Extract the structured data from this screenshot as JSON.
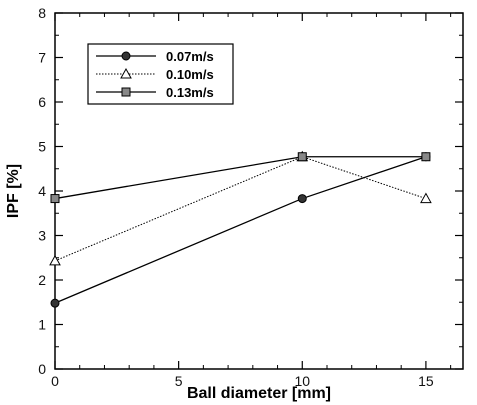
{
  "chart_data": {
    "type": "line",
    "xlabel": "Ball diameter [mm]",
    "ylabel": "IPF [%]",
    "xlim": [
      0,
      16.5
    ],
    "ylim": [
      0,
      8
    ],
    "xticks": [
      0,
      5,
      10,
      15
    ],
    "yticks": [
      0,
      1,
      2,
      3,
      4,
      5,
      6,
      7,
      8
    ],
    "grid": false,
    "legend_position": "top-left",
    "series": [
      {
        "name": "0.07m/s",
        "marker": "circle",
        "dash": "solid",
        "color": "#000000",
        "points": [
          [
            0,
            1.48
          ],
          [
            10,
            3.83
          ],
          [
            15,
            4.77
          ]
        ]
      },
      {
        "name": "0.10m/s",
        "marker": "triangle",
        "dash": "dotted",
        "color": "#000000",
        "points": [
          [
            0,
            2.43
          ],
          [
            10,
            4.77
          ],
          [
            15,
            3.83
          ]
        ]
      },
      {
        "name": "0.13m/s",
        "marker": "square",
        "dash": "solid",
        "color": "#000000",
        "points": [
          [
            0,
            3.83
          ],
          [
            10,
            4.77
          ],
          [
            15,
            4.77
          ]
        ]
      }
    ]
  }
}
